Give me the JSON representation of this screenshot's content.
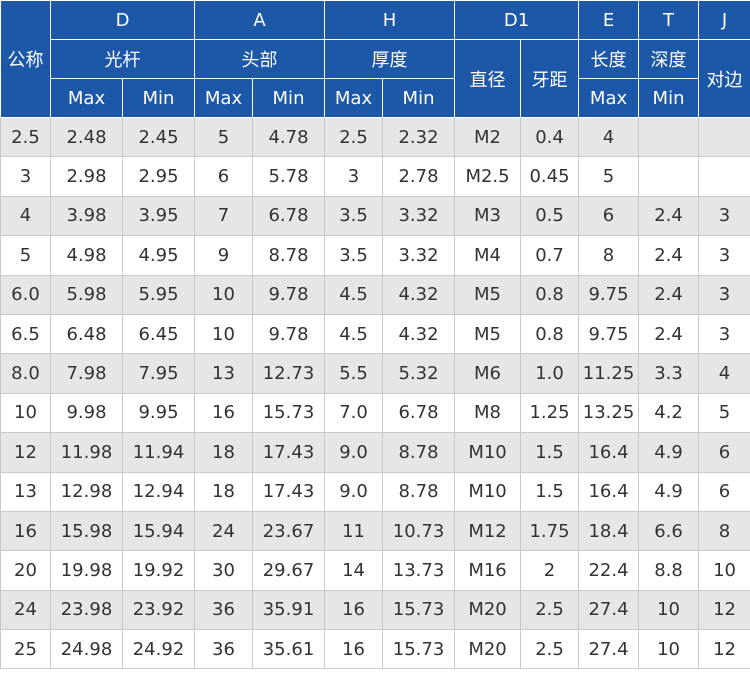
{
  "header": {
    "row1": {
      "gongcheng": "公称",
      "D": "D",
      "A": "A",
      "H": "H",
      "D1": "D1",
      "E": "E",
      "T": "T",
      "J": "J"
    },
    "row2": {
      "D": "光杆",
      "A": "头部",
      "H": "厚度",
      "D1_dia": "直径",
      "D1_pitch": "牙距",
      "E": "长度",
      "T": "深度",
      "J": "对边"
    },
    "row3": {
      "D_max": "Max",
      "D_min": "Min",
      "A_max": "Max",
      "A_min": "Min",
      "H_max": "Max",
      "H_min": "Min",
      "E_max": "Max",
      "T_min": "Min"
    }
  },
  "rows": [
    [
      "2.5",
      "2.48",
      "2.45",
      "5",
      "4.78",
      "2.5",
      "2.32",
      "M2",
      "0.4",
      "4",
      "",
      ""
    ],
    [
      "3",
      "2.98",
      "2.95",
      "6",
      "5.78",
      "3",
      "2.78",
      "M2.5",
      "0.45",
      "5",
      "",
      ""
    ],
    [
      "4",
      "3.98",
      "3.95",
      "7",
      "6.78",
      "3.5",
      "3.32",
      "M3",
      "0.5",
      "6",
      "2.4",
      "3"
    ],
    [
      "5",
      "4.98",
      "4.95",
      "9",
      "8.78",
      "3.5",
      "3.32",
      "M4",
      "0.7",
      "8",
      "2.4",
      "3"
    ],
    [
      "6.0",
      "5.98",
      "5.95",
      "10",
      "9.78",
      "4.5",
      "4.32",
      "M5",
      "0.8",
      "9.75",
      "2.4",
      "3"
    ],
    [
      "6.5",
      "6.48",
      "6.45",
      "10",
      "9.78",
      "4.5",
      "4.32",
      "M5",
      "0.8",
      "9.75",
      "2.4",
      "3"
    ],
    [
      "8.0",
      "7.98",
      "7.95",
      "13",
      "12.73",
      "5.5",
      "5.32",
      "M6",
      "1.0",
      "11.25",
      "3.3",
      "4"
    ],
    [
      "10",
      "9.98",
      "9.95",
      "16",
      "15.73",
      "7.0",
      "6.78",
      "M8",
      "1.25",
      "13.25",
      "4.2",
      "5"
    ],
    [
      "12",
      "11.98",
      "11.94",
      "18",
      "17.43",
      "9.0",
      "8.78",
      "M10",
      "1.5",
      "16.4",
      "4.9",
      "6"
    ],
    [
      "13",
      "12.98",
      "12.94",
      "18",
      "17.43",
      "9.0",
      "8.78",
      "M10",
      "1.5",
      "16.4",
      "4.9",
      "6"
    ],
    [
      "16",
      "15.98",
      "15.94",
      "24",
      "23.67",
      "11",
      "10.73",
      "M12",
      "1.75",
      "18.4",
      "6.6",
      "8"
    ],
    [
      "20",
      "19.98",
      "19.92",
      "30",
      "29.67",
      "14",
      "13.73",
      "M16",
      "2",
      "22.4",
      "8.8",
      "10"
    ],
    [
      "24",
      "23.98",
      "23.92",
      "36",
      "35.91",
      "16",
      "15.73",
      "M20",
      "2.5",
      "27.4",
      "10",
      "12"
    ],
    [
      "25",
      "24.98",
      "24.92",
      "36",
      "35.61",
      "16",
      "15.73",
      "M20",
      "2.5",
      "27.4",
      "10",
      "12"
    ]
  ]
}
